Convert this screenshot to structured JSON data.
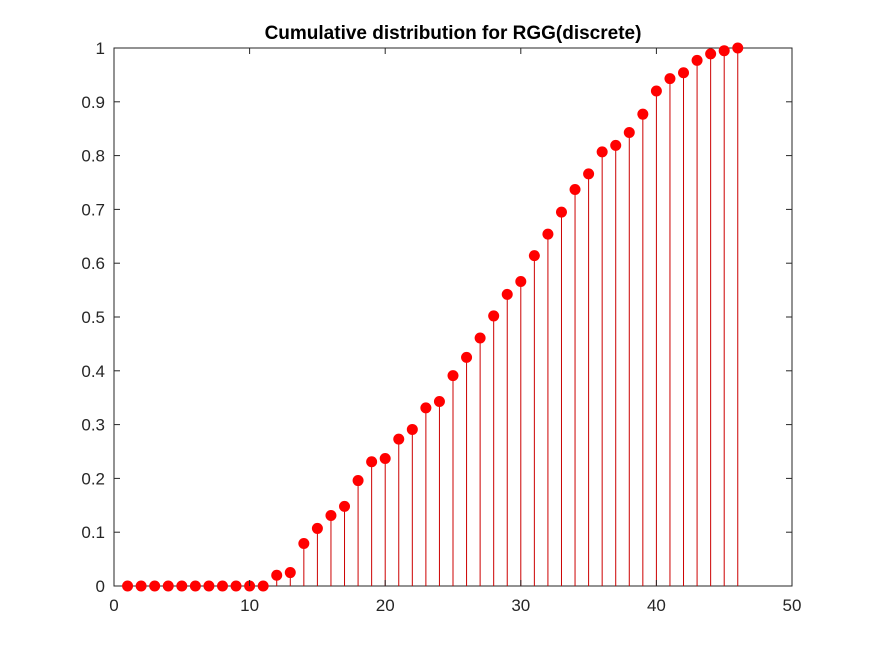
{
  "chart_data": {
    "type": "stem",
    "title": "Cumulative distribution for RGG(discrete)",
    "xlabel": "",
    "ylabel": "",
    "xlim": [
      0,
      50
    ],
    "ylim": [
      0,
      1
    ],
    "xticks": [
      0,
      10,
      20,
      30,
      40,
      50
    ],
    "yticks": [
      0,
      0.1,
      0.2,
      0.3,
      0.4,
      0.5,
      0.6,
      0.7,
      0.8,
      0.9,
      1
    ],
    "grid": false,
    "marker_color": "#ff0000",
    "stem_color": "#cc0000",
    "x": [
      1,
      2,
      3,
      4,
      5,
      6,
      7,
      8,
      9,
      10,
      11,
      12,
      13,
      14,
      15,
      16,
      17,
      18,
      19,
      20,
      21,
      22,
      23,
      24,
      25,
      26,
      27,
      28,
      29,
      30,
      31,
      32,
      33,
      34,
      35,
      36,
      37,
      38,
      39,
      40,
      41,
      42,
      43,
      44,
      45,
      46
    ],
    "y": [
      0,
      0,
      0,
      0,
      0,
      0,
      0,
      0,
      0,
      0,
      0,
      0.02,
      0.025,
      0.079,
      0.107,
      0.131,
      0.148,
      0.196,
      0.231,
      0.237,
      0.273,
      0.291,
      0.331,
      0.343,
      0.391,
      0.425,
      0.461,
      0.502,
      0.542,
      0.566,
      0.614,
      0.654,
      0.695,
      0.737,
      0.766,
      0.807,
      0.819,
      0.843,
      0.877,
      0.92,
      0.943,
      0.954,
      0.977,
      0.989,
      0.995,
      1.0
    ]
  }
}
